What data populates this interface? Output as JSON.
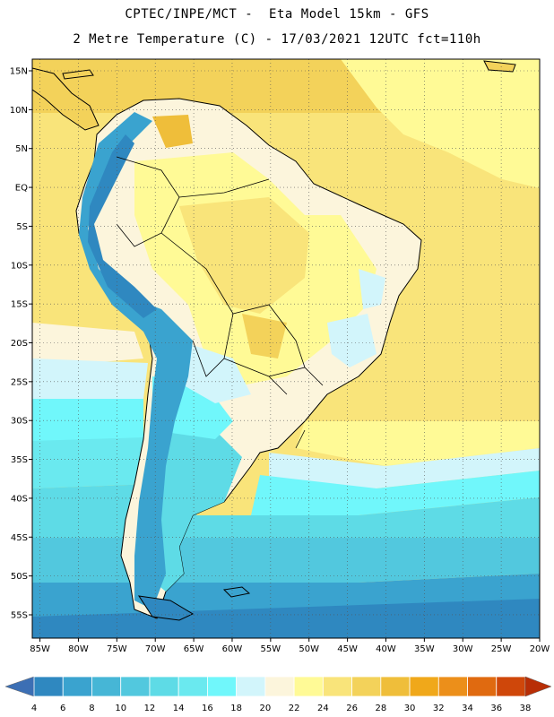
{
  "header": {
    "line1": "CPTEC/INPE/MCT -  Eta Model 15km - GFS",
    "line2": "2 Metre Temperature (C) - 17/03/2021 12UTC fct=110h"
  },
  "map": {
    "lon_range": [
      -86,
      -20
    ],
    "lat_range": [
      -58,
      16.5
    ],
    "lat_labels": [
      "15N",
      "10N",
      "5N",
      "EQ",
      "5S",
      "10S",
      "15S",
      "20S",
      "25S",
      "30S",
      "35S",
      "40S",
      "45S",
      "50S",
      "55S"
    ],
    "lat_values": [
      15,
      10,
      5,
      0,
      -5,
      -10,
      -15,
      -20,
      -25,
      -30,
      -35,
      -40,
      -45,
      -50,
      -55
    ],
    "lon_labels": [
      "85W",
      "80W",
      "75W",
      "70W",
      "65W",
      "60W",
      "55W",
      "50W",
      "45W",
      "40W",
      "35W",
      "30W",
      "25W",
      "20W"
    ],
    "lon_values": [
      -85,
      -80,
      -75,
      -70,
      -65,
      -60,
      -55,
      -50,
      -45,
      -40,
      -35,
      -30,
      -25,
      -20
    ],
    "grid": "dotted"
  },
  "colorbar": {
    "labels": [
      "4",
      "6",
      "8",
      "10",
      "12",
      "14",
      "16",
      "18",
      "20",
      "22",
      "24",
      "26",
      "28",
      "30",
      "32",
      "34",
      "36",
      "38"
    ],
    "colors": [
      "#3c6fb4",
      "#2f88c0",
      "#3aa3cf",
      "#46b6d6",
      "#52c8de",
      "#5edbe6",
      "#6ae9ef",
      "#70f7fb",
      "#d2f5fb",
      "#fcf5dc",
      "#fffa96",
      "#f9e47a",
      "#f3d25a",
      "#efbe3a",
      "#f0a81a",
      "#ec8f1a",
      "#e06a10",
      "#cf470a",
      "#b82e06"
    ]
  }
}
